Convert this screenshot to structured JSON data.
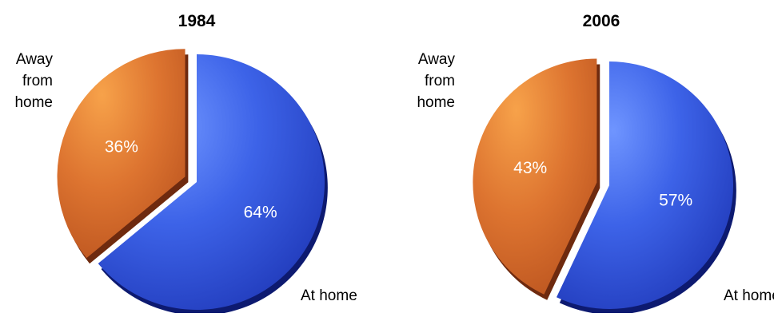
{
  "chart_data": [
    {
      "type": "pie",
      "title": "1984",
      "slices": [
        {
          "label": "At home",
          "value": 64,
          "display": "64%",
          "color": "#2f4fd3",
          "exploded": false
        },
        {
          "label": "Away from home",
          "value": 36,
          "display": "36%",
          "color": "#d2692a",
          "exploded": true
        }
      ]
    },
    {
      "type": "pie",
      "title": "2006",
      "slices": [
        {
          "label": "At home",
          "value": 57,
          "display": "57%",
          "color": "#2f4fd3",
          "exploded": false
        },
        {
          "label": "Away from home",
          "value": 43,
          "display": "43%",
          "color": "#d2692a",
          "exploded": true
        }
      ]
    }
  ],
  "labels": {
    "away_lines": [
      "Away",
      "from",
      "home"
    ],
    "home": "At home"
  }
}
